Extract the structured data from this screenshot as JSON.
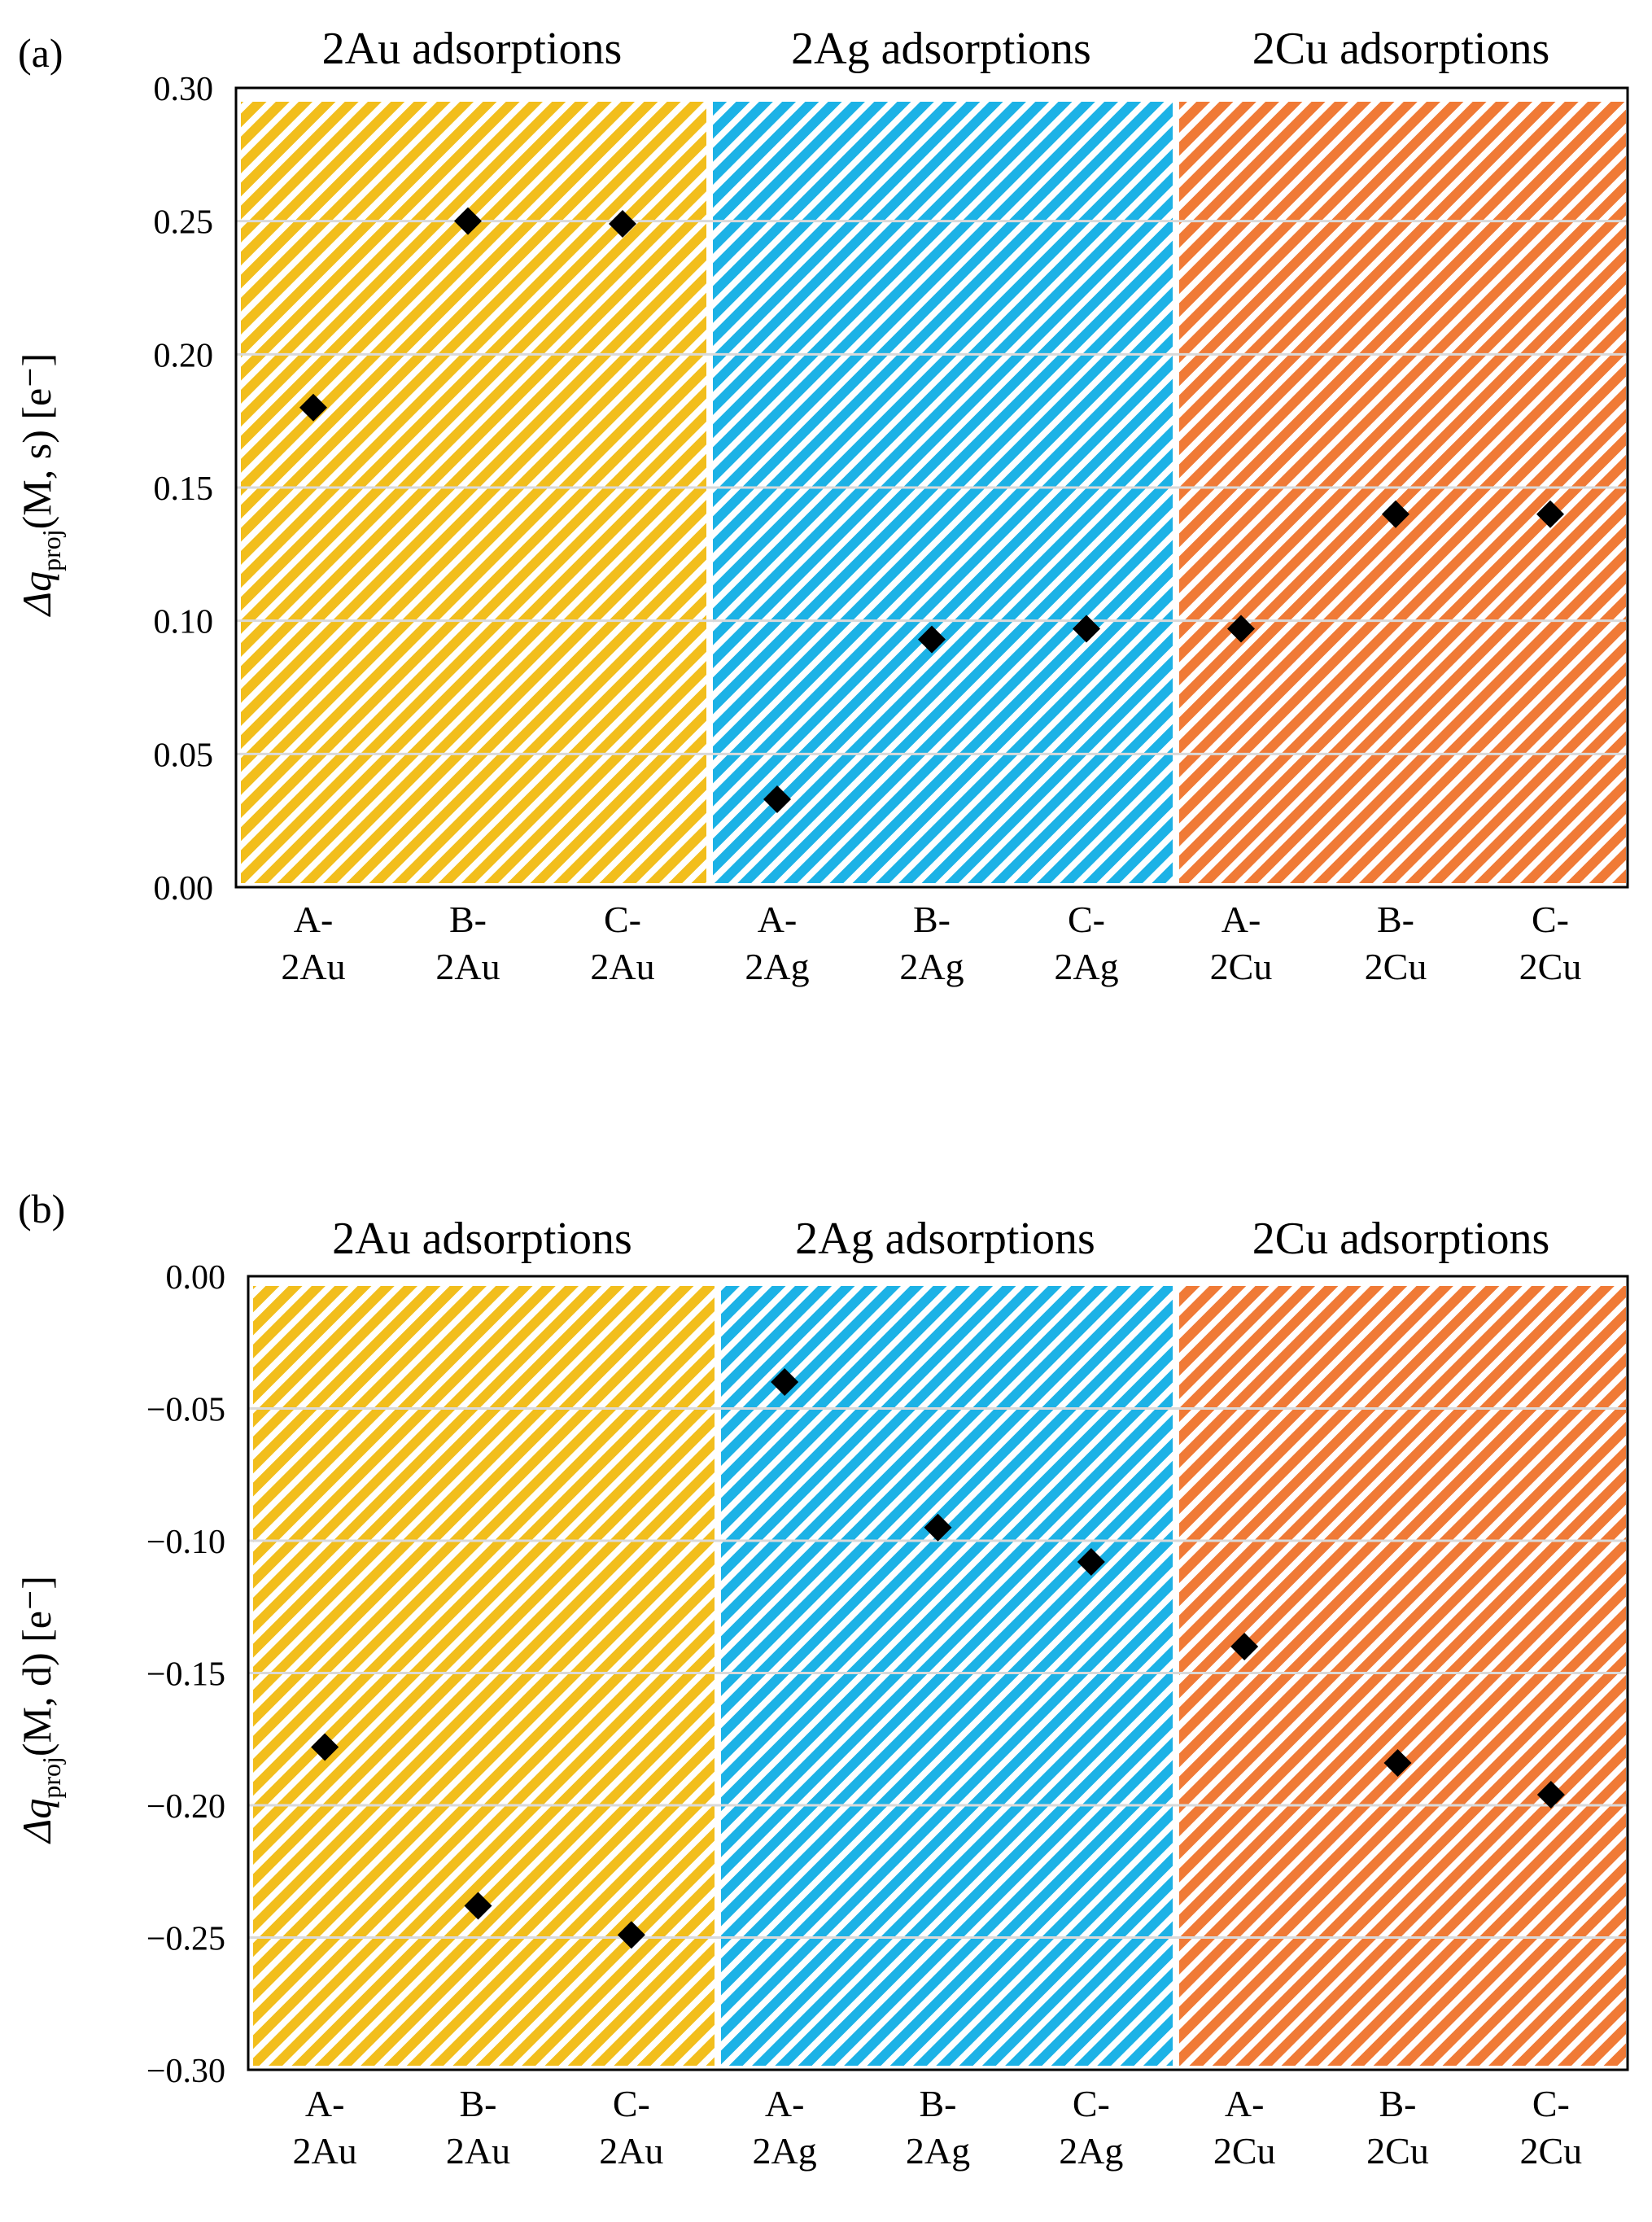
{
  "colors": {
    "gold": "#F2BE1C",
    "blue": "#1CB2E6",
    "orange": "#F07A36",
    "grid": "#D9D9D9",
    "marker": "#000000"
  },
  "chart_data": [
    {
      "type": "scatter",
      "panel_label": "(a)",
      "ylabel": {
        "main": "Δq",
        "sub": "proj",
        "rest": "(M, s) [e⁻]"
      },
      "ylim": [
        0.0,
        0.3
      ],
      "yticks": [
        0.0,
        0.05,
        0.1,
        0.15,
        0.2,
        0.25,
        0.3
      ],
      "ytick_labels": [
        "0.00",
        "0.05",
        "0.10",
        "0.15",
        "0.20",
        "0.25",
        "0.30"
      ],
      "grid": true,
      "categories": [
        [
          "A-",
          "2Au"
        ],
        [
          "B-",
          "2Au"
        ],
        [
          "C-",
          "2Au"
        ],
        [
          "A-",
          "2Ag"
        ],
        [
          "B-",
          "2Ag"
        ],
        [
          "C-",
          "2Ag"
        ],
        [
          "A-",
          "2Cu"
        ],
        [
          "B-",
          "2Cu"
        ],
        [
          "C-",
          "2Cu"
        ]
      ],
      "groups": [
        {
          "label": "2Au adsorptions",
          "color": "gold"
        },
        {
          "label": "2Ag adsorptions",
          "color": "blue"
        },
        {
          "label": "2Cu adsorptions",
          "color": "orange"
        }
      ],
      "values": [
        0.18,
        0.25,
        0.249,
        0.033,
        0.093,
        0.097,
        0.097,
        0.14,
        0.14
      ]
    },
    {
      "type": "scatter",
      "panel_label": "(b)",
      "ylabel": {
        "main": "Δq",
        "sub": "proj",
        "rest": "(M, d) [e⁻]"
      },
      "ylim": [
        -0.3,
        0.0
      ],
      "yticks": [
        0.0,
        -0.05,
        -0.1,
        -0.15,
        -0.2,
        -0.25,
        -0.3
      ],
      "ytick_labels": [
        "0.00",
        "−0.05",
        "−0.10",
        "−0.15",
        "−0.20",
        "−0.25",
        "−0.30"
      ],
      "grid": true,
      "categories": [
        [
          "A-",
          "2Au"
        ],
        [
          "B-",
          "2Au"
        ],
        [
          "C-",
          "2Au"
        ],
        [
          "A-",
          "2Ag"
        ],
        [
          "B-",
          "2Ag"
        ],
        [
          "C-",
          "2Ag"
        ],
        [
          "A-",
          "2Cu"
        ],
        [
          "B-",
          "2Cu"
        ],
        [
          "C-",
          "2Cu"
        ]
      ],
      "groups": [
        {
          "label": "2Au adsorptions",
          "color": "gold"
        },
        {
          "label": "2Ag adsorptions",
          "color": "blue"
        },
        {
          "label": "2Cu adsorptions",
          "color": "orange"
        }
      ],
      "values": [
        -0.178,
        -0.238,
        -0.249,
        -0.04,
        -0.095,
        -0.108,
        -0.14,
        -0.184,
        -0.196
      ]
    }
  ]
}
